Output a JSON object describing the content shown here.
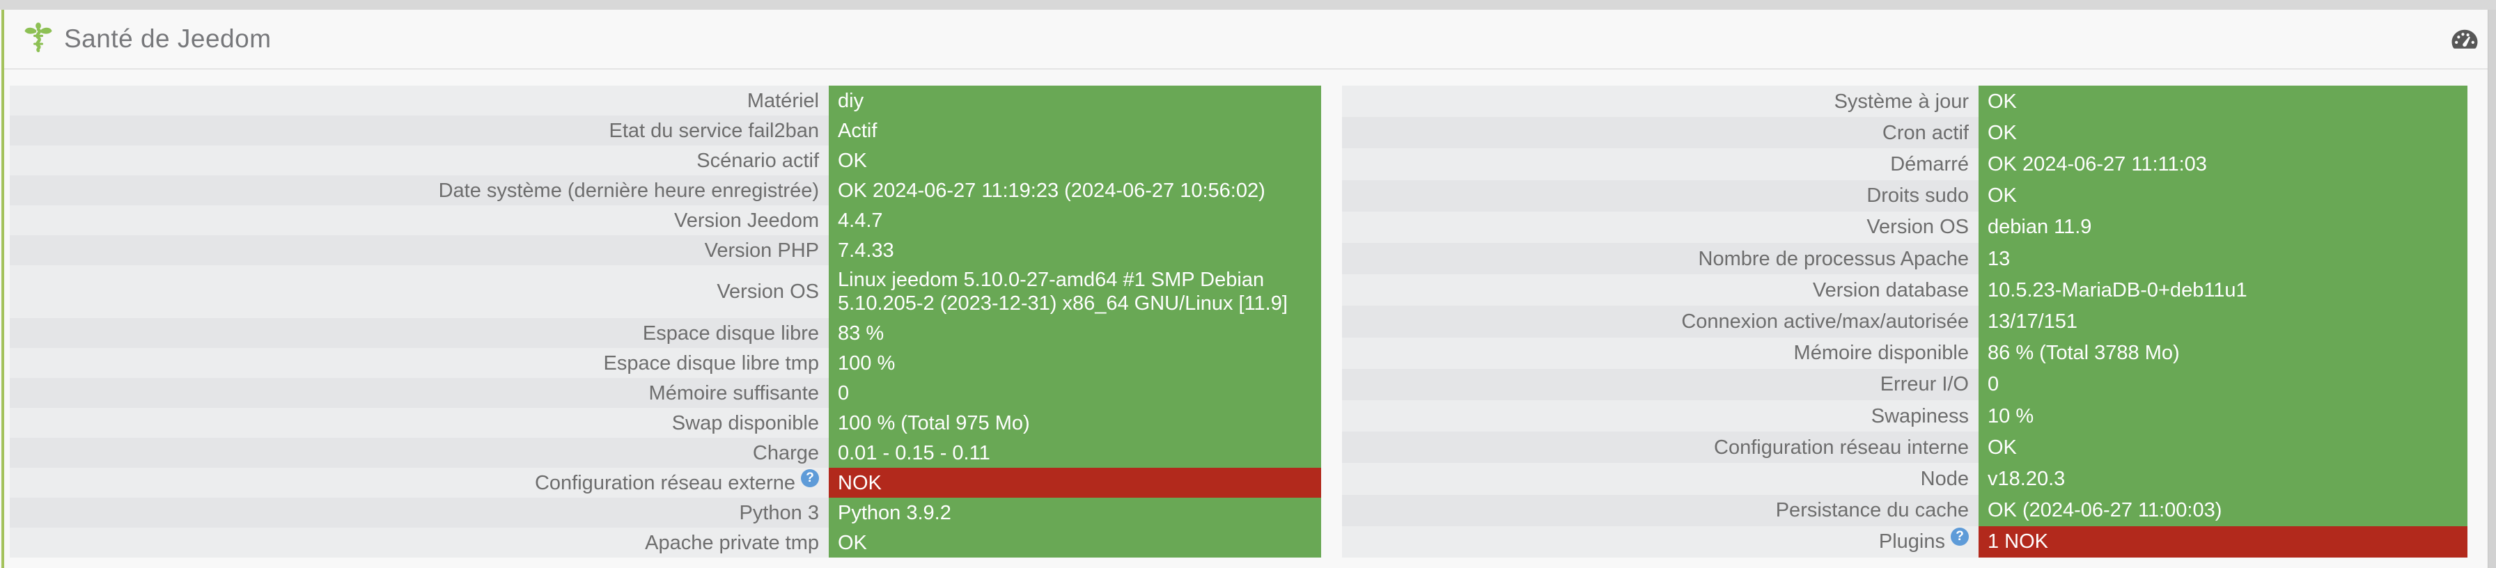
{
  "header": {
    "title": "Santé de Jeedom",
    "health_icon": "caduceus-health-icon",
    "dashboard_icon": "tachometer-icon"
  },
  "colors": {
    "ok": "#69a855",
    "nok": "#b2291c",
    "help": "#5e9bd8",
    "accent": "#a4c25c",
    "icon_green": "#8dc054"
  },
  "tables": {
    "left": {
      "rows": [
        {
          "label": "Matériel",
          "value": "diy",
          "status": "ok"
        },
        {
          "label": "Etat du service fail2ban",
          "value": "Actif",
          "status": "ok"
        },
        {
          "label": "Scénario actif",
          "value": "OK",
          "status": "ok"
        },
        {
          "label": "Date système (dernière heure enregistrée)",
          "value": "OK 2024-06-27 11:19:23 (2024-06-27 10:56:02)",
          "status": "ok"
        },
        {
          "label": "Version Jeedom",
          "value": "4.4.7",
          "status": "ok"
        },
        {
          "label": "Version PHP",
          "value": "7.4.33",
          "status": "ok"
        },
        {
          "label": "Version OS",
          "value": "Linux jeedom 5.10.0-27-amd64 #1 SMP Debian 5.10.205-2 (2023-12-31) x86_64 GNU/Linux [11.9]",
          "status": "ok"
        },
        {
          "label": "Espace disque libre",
          "value": "83 %",
          "status": "ok"
        },
        {
          "label": "Espace disque libre tmp",
          "value": "100 %",
          "status": "ok"
        },
        {
          "label": "Mémoire suffisante",
          "value": "0",
          "status": "ok"
        },
        {
          "label": "Swap disponible",
          "value": "100 % (Total 975 Mo)",
          "status": "ok"
        },
        {
          "label": "Charge",
          "value": "0.01 - 0.15 - 0.11",
          "status": "ok"
        },
        {
          "label": "Configuration réseau externe",
          "value": "NOK",
          "status": "nok",
          "help": true
        },
        {
          "label": "Python 3",
          "value": "Python 3.9.2",
          "status": "ok"
        },
        {
          "label": "Apache private tmp",
          "value": "OK",
          "status": "ok"
        }
      ]
    },
    "right": {
      "rows": [
        {
          "label": "Système à jour",
          "value": "OK",
          "status": "ok"
        },
        {
          "label": "Cron actif",
          "value": "OK",
          "status": "ok"
        },
        {
          "label": "Démarré",
          "value": "OK 2024-06-27 11:11:03",
          "status": "ok"
        },
        {
          "label": "Droits sudo",
          "value": "OK",
          "status": "ok"
        },
        {
          "label": "Version OS",
          "value": "debian 11.9",
          "status": "ok"
        },
        {
          "label": "Nombre de processus Apache",
          "value": "13",
          "status": "ok"
        },
        {
          "label": "Version database",
          "value": "10.5.23-MariaDB-0+deb11u1",
          "status": "ok"
        },
        {
          "label": "Connexion active/max/autorisée",
          "value": "13/17/151",
          "status": "ok"
        },
        {
          "label": "Mémoire disponible",
          "value": "86 % (Total 3788 Mo)",
          "status": "ok"
        },
        {
          "label": "Erreur I/O",
          "value": "0",
          "status": "ok"
        },
        {
          "label": "Swapiness",
          "value": "10 %",
          "status": "ok"
        },
        {
          "label": "Configuration réseau interne",
          "value": "OK",
          "status": "ok"
        },
        {
          "label": "Node",
          "value": "v18.20.3",
          "status": "ok"
        },
        {
          "label": "Persistance du cache",
          "value": "OK (2024-06-27 11:00:03)",
          "status": "ok"
        },
        {
          "label": "Plugins",
          "value": "1 NOK",
          "status": "nok",
          "help": true
        }
      ]
    }
  },
  "help_glyph": "?"
}
